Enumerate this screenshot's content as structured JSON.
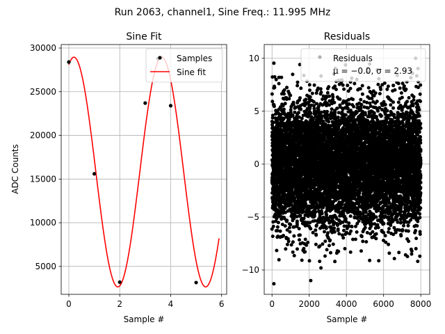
{
  "figure": {
    "suptitle": "Run 2063, channel1, Sine Freq.: 11.995 MHz"
  },
  "chart_data": [
    {
      "type": "scatter+line",
      "title": "Sine Fit",
      "xlabel": "Sample #",
      "ylabel": "ADC Counts",
      "xlim": [
        -0.3,
        6.2
      ],
      "ylim": [
        1800,
        30400
      ],
      "xticks": [
        0,
        2,
        4,
        6
      ],
      "yticks": [
        5000,
        10000,
        15000,
        20000,
        25000,
        30000
      ],
      "xticklabels": [
        "0",
        "2",
        "4",
        "6"
      ],
      "yticklabels": [
        "5000",
        "10000",
        "15000",
        "20000",
        "25000",
        "30000"
      ],
      "grid": true,
      "legend": {
        "location": "upper right",
        "entries": [
          "Samples",
          "Sine fit"
        ]
      },
      "samples": {
        "name": "Samples",
        "color": "#000000",
        "x": [
          0,
          1,
          2,
          3,
          3.5,
          4,
          5
        ],
        "y": [
          28400,
          15600,
          3200,
          23700,
          28800,
          23400,
          3150
        ]
      },
      "fit": {
        "name": "Sine fit",
        "color": "#ff0000",
        "amplitude": 13150,
        "offset": 15800,
        "period": 3.45,
        "phase_peak_x": 0.2,
        "x_range": [
          0,
          5.9
        ]
      }
    },
    {
      "type": "scatter",
      "title": "Residuals",
      "xlabel": "Sample #",
      "ylabel": "",
      "xlim": [
        -420,
        8480
      ],
      "ylim": [
        -12.3,
        11.3
      ],
      "xticks": [
        0,
        2000,
        4000,
        6000,
        8000
      ],
      "yticks": [
        -10,
        -5,
        0,
        5,
        10
      ],
      "xticklabels": [
        "0",
        "2000",
        "4000",
        "6000",
        "8000"
      ],
      "yticklabels": [
        "−10",
        "−5",
        "0",
        "5",
        "10"
      ],
      "grid": true,
      "legend": {
        "location": "upper right",
        "entries": [
          "Residuals",
          "μ = −0.0, σ = 2.93"
        ]
      },
      "series": {
        "name": "Residuals",
        "color": "#000000",
        "n_points": 8000,
        "mean": 0.0,
        "sigma": 2.93,
        "notable_points": [
          {
            "x": 100,
            "y": -11.3
          },
          {
            "x": 2080,
            "y": -11.0
          },
          {
            "x": 2630,
            "y": -9.8
          },
          {
            "x": 7720,
            "y": 10.0
          },
          {
            "x": 7950,
            "y": -8.7
          },
          {
            "x": 3380,
            "y": -9.2
          },
          {
            "x": 5250,
            "y": -9.1
          }
        ]
      }
    }
  ]
}
